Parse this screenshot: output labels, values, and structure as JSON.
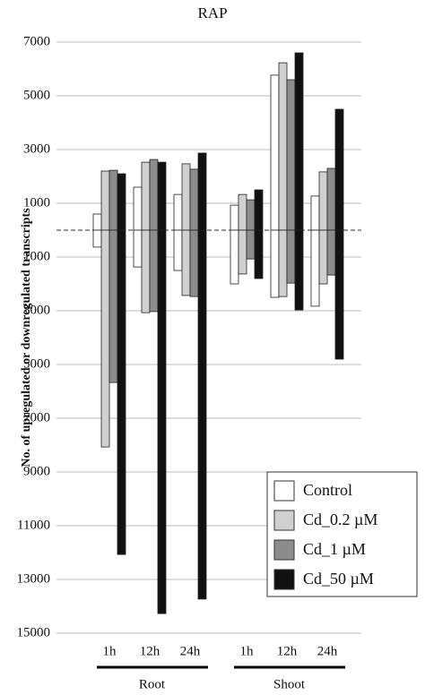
{
  "chart_data": {
    "type": "diverging_bar",
    "title": "RAP",
    "y_label": "No. of upregulated or downregulated transcripts",
    "groups": [
      {
        "name": "Root",
        "categories": [
          "1h",
          "12h",
          "24h"
        ]
      },
      {
        "name": "Shoot",
        "categories": [
          "1h",
          "12h",
          "24h"
        ]
      }
    ],
    "series": [
      {
        "name": "Control",
        "color": "#ffffff",
        "up": [
          600,
          1600,
          1330,
          930,
          5770,
          1270
        ],
        "down": [
          -630,
          -1370,
          -1500,
          -2000,
          -2500,
          -2830
        ]
      },
      {
        "name": "Cd_0.2 µM",
        "color": "#d0d0d0",
        "up": [
          2200,
          2530,
          2470,
          1330,
          6230,
          2170
        ],
        "down": [
          -8070,
          -3070,
          -2430,
          -1630,
          -2470,
          -2000
        ]
      },
      {
        "name": "Cd_1 µM",
        "color": "#8c8c8c",
        "up": [
          2230,
          2630,
          2270,
          1130,
          5600,
          2300
        ],
        "down": [
          -5670,
          -3030,
          -2470,
          -1070,
          -1970,
          -1670
        ]
      },
      {
        "name": "Cd_50 µM",
        "color": "#111111",
        "up": [
          2100,
          2530,
          2870,
          1500,
          6600,
          4500
        ],
        "down": [
          -12070,
          -14270,
          -13730,
          -1800,
          -2970,
          -4800
        ]
      }
    ],
    "ylim": [
      -15000,
      7000
    ],
    "yticks": [
      7000,
      5000,
      3000,
      1000,
      {
        "value": -1000,
        "label": "1000"
      },
      {
        "value": -3000,
        "label": "3000"
      },
      {
        "value": -5000,
        "label": "5000"
      },
      {
        "value": -7000,
        "label": "7000"
      },
      {
        "value": -9000,
        "label": "9000"
      },
      {
        "value": -11000,
        "label": "11000"
      },
      {
        "value": -13000,
        "label": "13000"
      },
      {
        "value": -15000,
        "label": "15000"
      }
    ],
    "grid": true,
    "legend": "lower right"
  }
}
